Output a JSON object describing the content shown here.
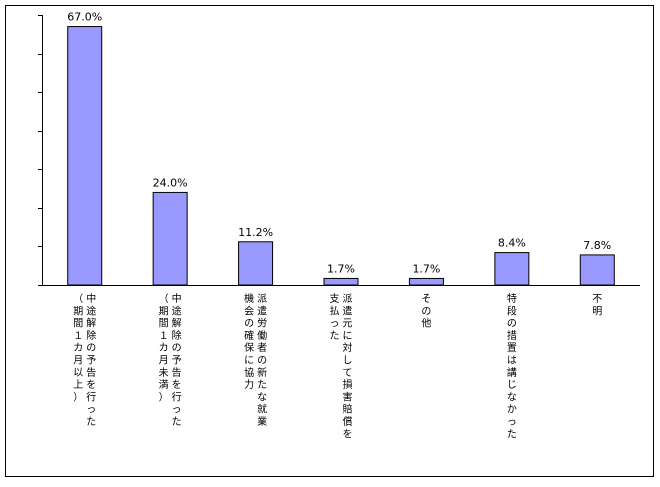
{
  "chart_data": {
    "type": "bar",
    "title": "",
    "xlabel": "",
    "ylabel": "",
    "ylim": [
      0,
      70
    ],
    "y_tick_count": 7,
    "y_tick_labels_shown": false,
    "grid": false,
    "legend": "none",
    "bar_color": "#9999ff",
    "bar_edge_color": "#000000",
    "categories": [
      [
        "中途解除の予告を行った",
        "（期間１カ月以上）"
      ],
      [
        "中途解除の予告を行った",
        "（期間１カ月未満）"
      ],
      [
        "派遣労働者の新たな就業",
        "機会の確保に協力"
      ],
      [
        "派遣元に対して損害賠償を",
        "支払った"
      ],
      [
        "その他"
      ],
      [
        "特段の措置は講じなかった"
      ],
      [
        "不明"
      ]
    ],
    "values": [
      67.0,
      24.0,
      11.2,
      1.7,
      1.7,
      8.4,
      7.8
    ],
    "value_labels": [
      "67.0%",
      "24.0%",
      "11.2%",
      "1.7%",
      "1.7%",
      "8.4%",
      "7.8%"
    ]
  }
}
